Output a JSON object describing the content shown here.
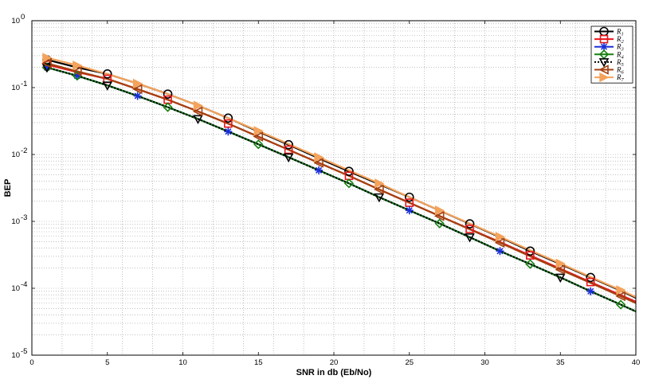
{
  "chart_data": {
    "type": "line",
    "title": "",
    "xlabel": "SNR in db (Eb/No)",
    "ylabel": "BEP",
    "xlim": [
      0,
      40
    ],
    "ylim": [
      1e-05,
      1
    ],
    "yscale": "log",
    "grid": true,
    "legend_position": "top-right",
    "x_ticks": [
      "0",
      "5",
      "10",
      "15",
      "20",
      "25",
      "30",
      "35",
      "40"
    ],
    "y_ticks": [
      {
        "base": "10",
        "exp": "0",
        "value": 1
      },
      {
        "base": "10",
        "exp": "-1",
        "value": 0.1
      },
      {
        "base": "10",
        "exp": "-2",
        "value": 0.01
      },
      {
        "base": "10",
        "exp": "-3",
        "value": 0.001
      },
      {
        "base": "10",
        "exp": "-4",
        "value": 0.0001
      },
      {
        "base": "10",
        "exp": "-5",
        "value": 1e-05
      }
    ],
    "x": [
      1,
      3,
      5,
      7,
      9,
      11,
      13,
      15,
      17,
      19,
      21,
      23,
      25,
      27,
      29,
      31,
      33,
      35,
      37,
      39,
      40
    ],
    "series": [
      {
        "name": "R1",
        "label_main": "R",
        "label_sub": "1",
        "color": "#000000",
        "marker": "circle",
        "marker_offset": 0,
        "values": [
          0.26,
          0.2,
          0.16,
          0.115,
          0.08,
          0.054,
          0.035,
          0.022,
          0.014,
          0.0088,
          0.0056,
          0.0036,
          0.0023,
          0.00145,
          0.00092,
          0.00058,
          0.00036,
          0.00023,
          0.000145,
          9.2e-05,
          7.2e-05
        ]
      },
      {
        "name": "R2",
        "label_main": "R",
        "label_sub": "2",
        "color": "#e8151b",
        "marker": "square",
        "marker_offset": 0,
        "values": [
          0.22,
          0.17,
          0.135,
          0.095,
          0.066,
          0.044,
          0.029,
          0.0185,
          0.0118,
          0.0075,
          0.0048,
          0.003,
          0.0019,
          0.0012,
          0.00077,
          0.00049,
          0.00031,
          0.000196,
          0.000124,
          7.9e-05,
          6.3e-05
        ]
      },
      {
        "name": "R3",
        "label_main": "R",
        "label_sub": "3",
        "color": "#1b2fd6",
        "marker": "star",
        "marker_offset": 0,
        "values": [
          0.2,
          0.15,
          0.108,
          0.075,
          0.051,
          0.034,
          0.022,
          0.0142,
          0.0091,
          0.0058,
          0.0037,
          0.0023,
          0.00146,
          0.00093,
          0.00058,
          0.00036,
          0.00023,
          0.000145,
          9e-05,
          5.7e-05,
          4.5e-05
        ]
      },
      {
        "name": "R4",
        "label_main": "R",
        "label_sub": "4",
        "color": "#16800f",
        "marker": "diamond",
        "marker_offset": 0,
        "values": [
          0.2,
          0.15,
          0.108,
          0.075,
          0.051,
          0.034,
          0.022,
          0.0142,
          0.0091,
          0.0058,
          0.0037,
          0.0023,
          0.00146,
          0.00093,
          0.00058,
          0.00036,
          0.00023,
          0.000145,
          9e-05,
          5.7e-05,
          4.5e-05
        ]
      },
      {
        "name": "R5",
        "label_main": "R",
        "label_sub": "5",
        "color": "#000000",
        "marker": "triangle-down",
        "marker_offset": 0,
        "values": [
          0.2,
          0.15,
          0.108,
          0.075,
          0.051,
          0.034,
          0.022,
          0.0142,
          0.0091,
          0.0058,
          0.0037,
          0.0023,
          0.00146,
          0.00093,
          0.00058,
          0.00036,
          0.00023,
          0.000145,
          9e-05,
          5.7e-05,
          4.5e-05
        ]
      },
      {
        "name": "R6",
        "label_main": "R",
        "label_sub": "6",
        "color": "#a4400f",
        "marker": "triangle-left",
        "marker_offset": 0,
        "values": [
          0.23,
          0.175,
          0.135,
          0.095,
          0.066,
          0.044,
          0.029,
          0.0185,
          0.0118,
          0.0075,
          0.0048,
          0.003,
          0.0019,
          0.0012,
          0.00076,
          0.00048,
          0.0003,
          0.00019,
          0.00012,
          7.6e-05,
          6e-05
        ]
      },
      {
        "name": "R7",
        "label_main": "R",
        "label_sub": "7",
        "color": "#f4a35c",
        "marker": "triangle-right",
        "marker_offset": 0,
        "values": [
          0.28,
          0.215,
          0.16,
          0.115,
          0.08,
          0.054,
          0.035,
          0.0225,
          0.0144,
          0.0091,
          0.0058,
          0.0037,
          0.0023,
          0.00146,
          0.00093,
          0.00059,
          0.00037,
          0.000235,
          0.000148,
          9.4e-05,
          7.4e-05
        ]
      }
    ],
    "marker_x": {
      "R1": [
        1,
        5,
        9,
        13,
        17,
        21,
        25,
        29,
        33,
        37
      ],
      "R2": [
        1,
        5,
        9,
        13,
        17,
        21,
        25,
        29,
        33,
        37
      ],
      "R3": [
        1,
        3,
        7,
        13,
        19,
        25,
        31,
        37
      ],
      "R4": [
        1,
        3,
        9,
        15,
        21,
        27,
        33,
        39
      ],
      "R5": [
        1,
        5,
        11,
        17,
        23,
        29,
        35
      ],
      "R6": [
        1,
        3,
        7,
        11,
        15,
        19,
        23,
        27,
        31,
        35,
        39
      ],
      "R7": [
        1,
        3,
        7,
        11,
        15,
        19,
        23,
        27,
        31,
        35,
        39
      ]
    }
  }
}
